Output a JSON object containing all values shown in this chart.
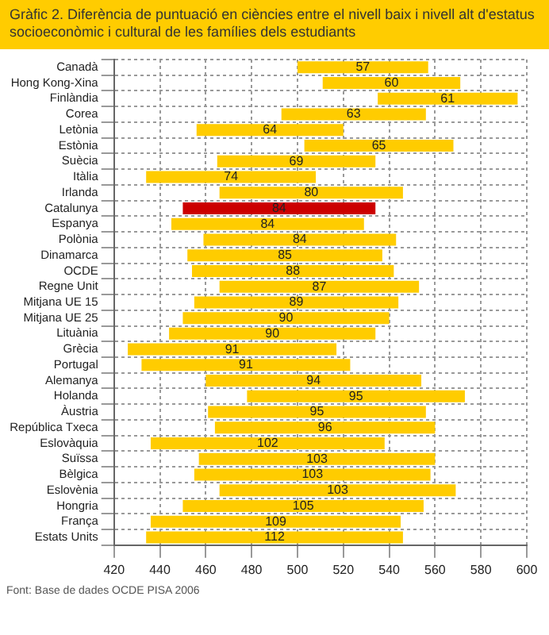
{
  "chart_data": {
    "type": "bar",
    "orientation": "horizontal",
    "title": "Gràfic 2. Diferència de puntuació en ciències entre el nivell baix i nivell alt d'estatus socioeconòmic i cultural de les famílies dels estudiants",
    "categories": [
      "Canadà",
      "Hong Kong-Xina",
      "Finlàndia",
      "Corea",
      "Letònia",
      "Estònia",
      "Suècia",
      "Itàlia",
      "Irlanda",
      "Catalunya",
      "Espanya",
      "Polònia",
      "Dinamarca",
      "OCDE",
      "Regne Unit",
      "Mitjana UE 15",
      "Mitjana UE 25",
      "Lituània",
      "Grècia",
      "Portugal",
      "Alemanya",
      "Holanda",
      "Àustria",
      "República Txeca",
      "Eslovàquia",
      "Suïssa",
      "Bèlgica",
      "Eslovènia",
      "Hongria",
      "França",
      "Estats Units"
    ],
    "values": [
      57,
      60,
      61,
      63,
      64,
      65,
      69,
      74,
      80,
      84,
      84,
      84,
      85,
      88,
      87,
      89,
      90,
      90,
      91,
      91,
      94,
      95,
      95,
      96,
      102,
      103,
      103,
      103,
      105,
      109,
      112
    ],
    "base": [
      500,
      511,
      535,
      493,
      456,
      503,
      465,
      434,
      466,
      450,
      445,
      459,
      452,
      454,
      466,
      455,
      450,
      444,
      426,
      432,
      460,
      478,
      461,
      464,
      436,
      457,
      455,
      466,
      450,
      436,
      434
    ],
    "colors": [
      "#ffcc00",
      "#ffcc00",
      "#ffcc00",
      "#ffcc00",
      "#ffcc00",
      "#ffcc00",
      "#ffcc00",
      "#ffcc00",
      "#ffcc00",
      "#cc0000",
      "#ffcc00",
      "#ffcc00",
      "#ffcc00",
      "#ffcc00",
      "#ffcc00",
      "#ffcc00",
      "#ffcc00",
      "#ffcc00",
      "#ffcc00",
      "#ffcc00",
      "#ffcc00",
      "#ffcc00",
      "#ffcc00",
      "#ffcc00",
      "#ffcc00",
      "#ffcc00",
      "#ffcc00",
      "#ffcc00",
      "#ffcc00",
      "#ffcc00",
      "#ffcc00"
    ],
    "xlim": [
      420,
      600
    ],
    "xticks": [
      420,
      440,
      460,
      480,
      500,
      520,
      540,
      560,
      580,
      600
    ],
    "grid": true,
    "legend": false,
    "data_labels": true,
    "annotations": [
      "Font: Base de dades OCDE PISA 2006"
    ]
  }
}
